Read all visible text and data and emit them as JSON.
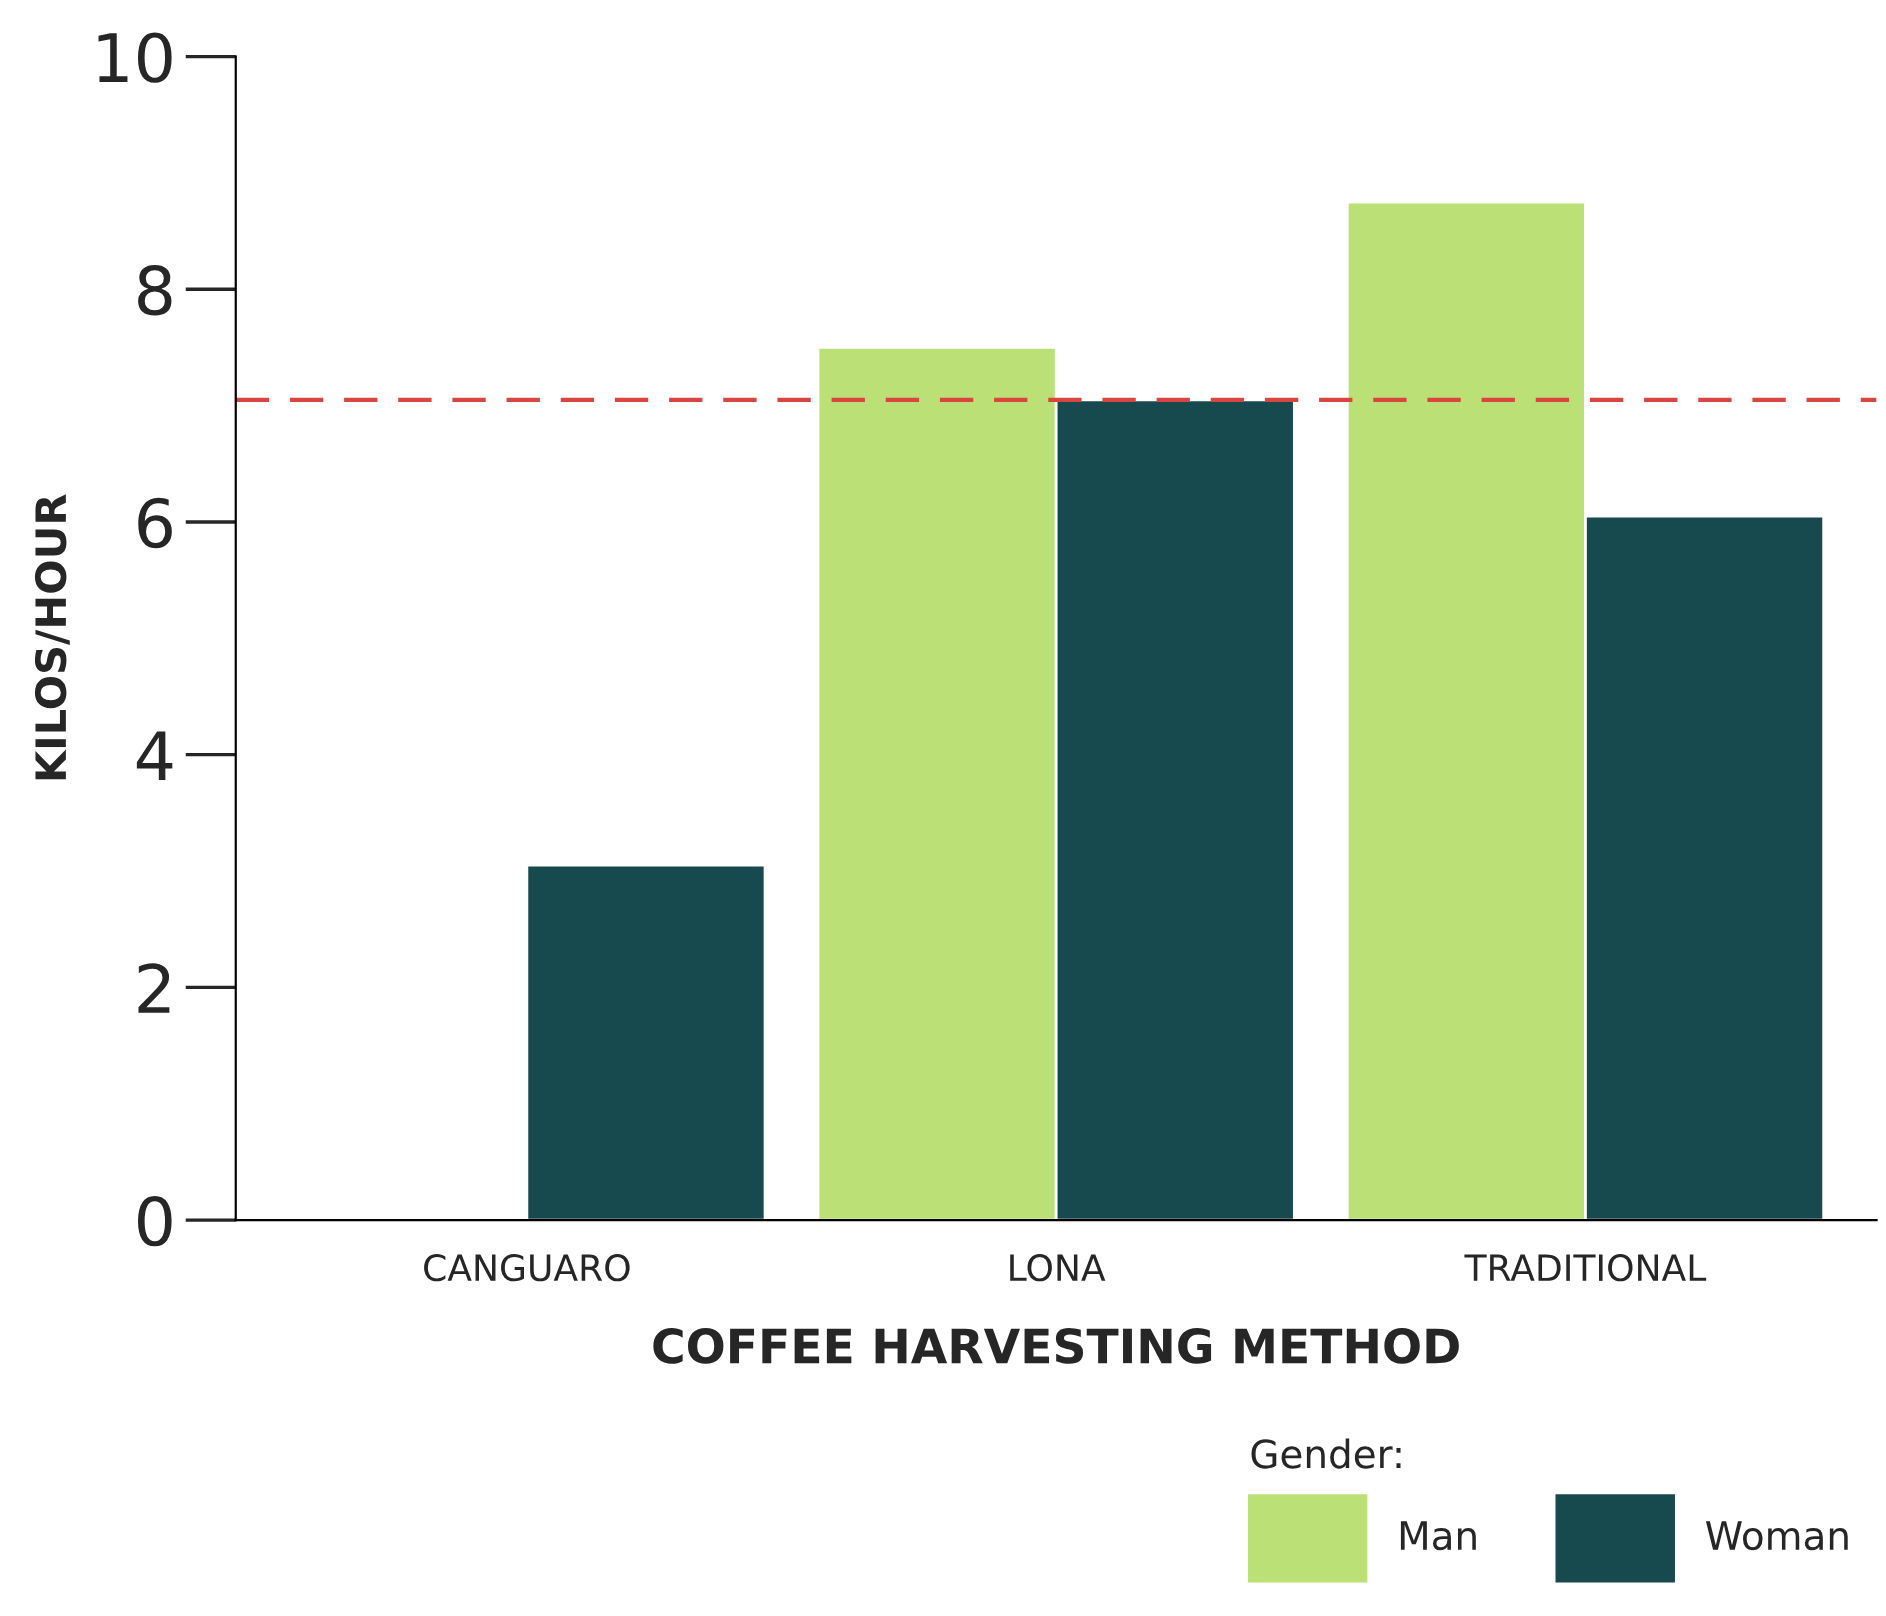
{
  "chart_data": {
    "type": "bar",
    "xlabel": "COFFEE HARVESTING METHOD",
    "ylabel": "KILOS/HOUR",
    "legend_title": "Gender:",
    "categories": [
      "CANGUARO",
      "LONA",
      "TRADITIONAL"
    ],
    "series": [
      {
        "name": "Man",
        "color": "#bbe075",
        "values": [
          null,
          7.5,
          8.75
        ]
      },
      {
        "name": "Woman",
        "color": "#164a4e",
        "values": [
          3.05,
          7.05,
          6.05
        ]
      }
    ],
    "ylim": [
      0,
      10
    ],
    "yticks": [
      0,
      2,
      4,
      6,
      8,
      10
    ],
    "ref_lines": [
      {
        "axis": "y",
        "value": 7.05,
        "color": "#d9463f",
        "line_style": "dashed"
      }
    ],
    "legend": "bottom right",
    "grid": false
  }
}
